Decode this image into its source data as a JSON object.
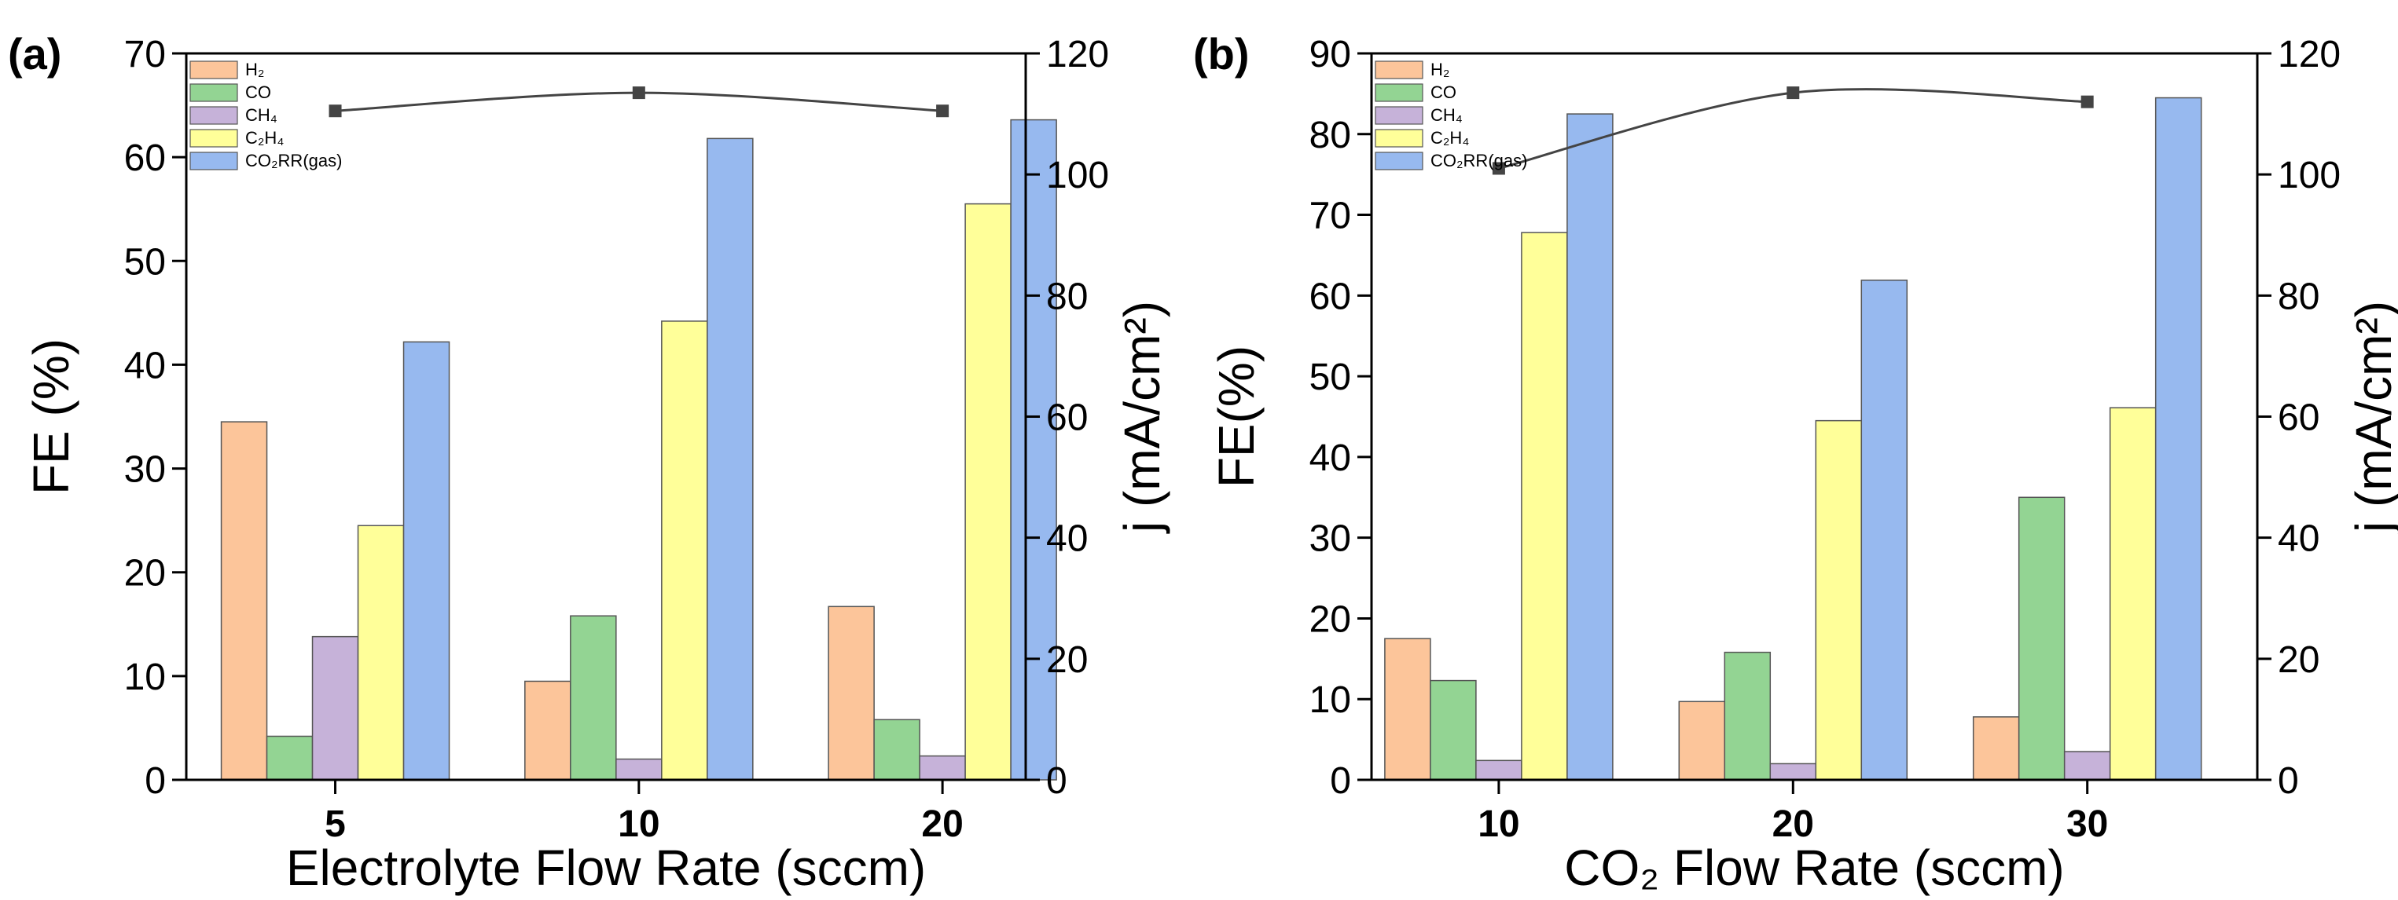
{
  "chart_data": [
    {
      "type": "bar",
      "panel_label": "(a)",
      "categories": [
        "5",
        "10",
        "20"
      ],
      "xlabel": "Electrolyte Flow Rate (sccm)",
      "ylabel": "FE (%)",
      "ylim": [
        0,
        70
      ],
      "yticks": [
        0,
        10,
        20,
        30,
        40,
        50,
        60,
        70
      ],
      "y2label": "j (mA/cm²)",
      "y2lim": [
        0,
        120
      ],
      "y2ticks": [
        0,
        20,
        40,
        60,
        80,
        100,
        120
      ],
      "legend_position": "top-left",
      "series": [
        {
          "name": "H₂",
          "color": "#fcc59a",
          "values": [
            34.5,
            9.5,
            16.7
          ]
        },
        {
          "name": "CO",
          "color": "#93d493",
          "values": [
            4.2,
            15.8,
            5.8
          ]
        },
        {
          "name": "CH₄",
          "color": "#c6b2d9",
          "values": [
            13.8,
            2.0,
            2.3
          ]
        },
        {
          "name": "C₂H₄",
          "color": "#ffff99",
          "values": [
            24.5,
            44.2,
            55.5
          ]
        },
        {
          "name": "CO₂RR(gas)",
          "color": "#97b9ef",
          "values": [
            42.2,
            61.8,
            63.6
          ]
        }
      ],
      "line_series": {
        "axis": "right",
        "color": "#444444",
        "values": [
          110.5,
          113.5,
          110.5
        ]
      }
    },
    {
      "type": "bar",
      "panel_label": "(b)",
      "categories": [
        "10",
        "20",
        "30"
      ],
      "xlabel": "CO₂ Flow Rate (sccm)",
      "ylabel": "FE(%)",
      "ylim": [
        0,
        90
      ],
      "yticks": [
        0,
        10,
        20,
        30,
        40,
        50,
        60,
        70,
        80,
        90
      ],
      "y2label": "j (mA/cm²)",
      "y2lim": [
        0,
        120
      ],
      "y2ticks": [
        0,
        20,
        40,
        60,
        80,
        100,
        120
      ],
      "legend_position": "top-left",
      "series": [
        {
          "name": "H₂",
          "color": "#fcc59a",
          "values": [
            17.5,
            9.7,
            7.8
          ]
        },
        {
          "name": "CO",
          "color": "#93d493",
          "values": [
            12.3,
            15.8,
            35.0
          ]
        },
        {
          "name": "CH₄",
          "color": "#c6b2d9",
          "values": [
            2.4,
            2.0,
            3.5
          ]
        },
        {
          "name": "C₂H₄",
          "color": "#ffff99",
          "values": [
            67.8,
            44.5,
            46.1
          ]
        },
        {
          "name": "CO₂RR(gas)",
          "color": "#97b9ef",
          "values": [
            82.5,
            61.9,
            84.5
          ]
        }
      ],
      "line_series": {
        "axis": "right",
        "color": "#444444",
        "values": [
          101,
          113.5,
          112
        ]
      }
    }
  ]
}
